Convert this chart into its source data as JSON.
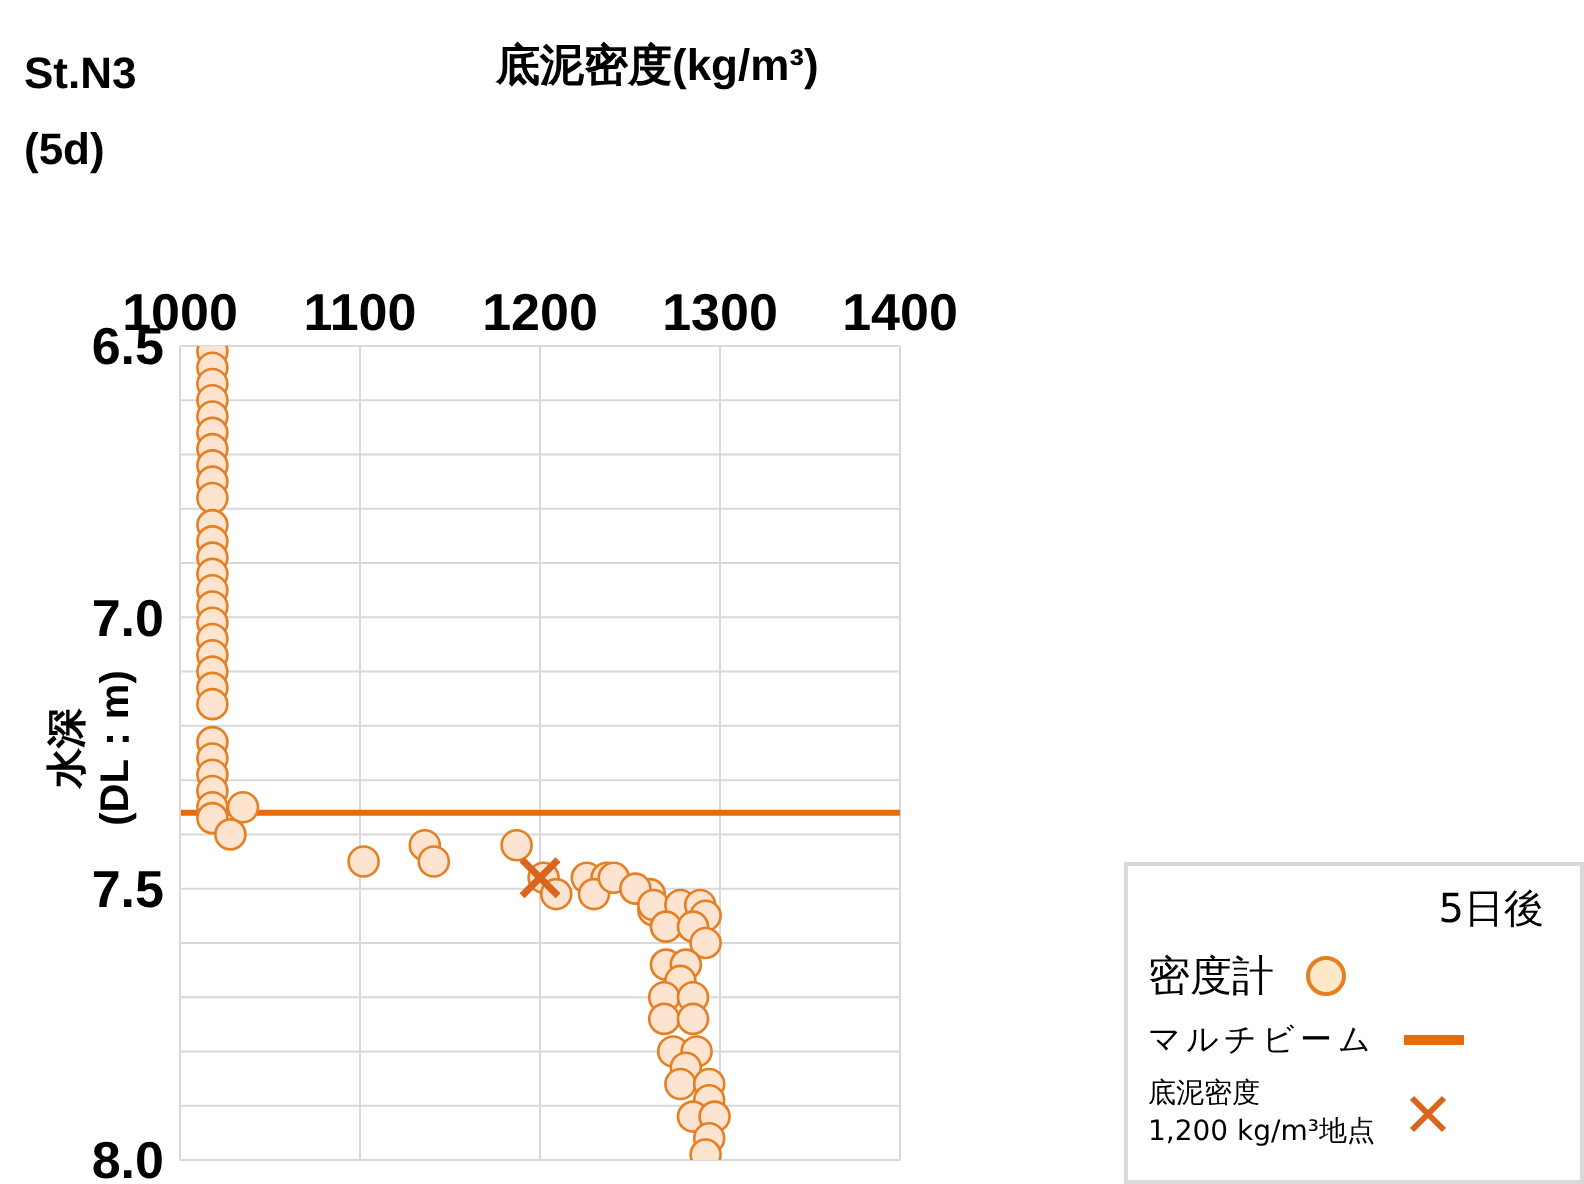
{
  "chart_data": {
    "type": "scatter",
    "title": "底泥密度(kg/m³)",
    "annotations": [
      "St.N3",
      "(5d)"
    ],
    "ylabel": "水深 (DL：m)",
    "legend_title": "5日後",
    "xlim": [
      1000,
      1400
    ],
    "xticks": [
      1000,
      1100,
      1200,
      1300,
      1400
    ],
    "ylim": [
      8.0,
      6.5
    ],
    "yticks": [
      {
        "value": 6.5,
        "label": "6.5"
      },
      {
        "value": 6.6,
        "label": null
      },
      {
        "value": 6.7,
        "label": null
      },
      {
        "value": 6.8,
        "label": null
      },
      {
        "value": 6.9,
        "label": null
      },
      {
        "value": 7.0,
        "label": "7.0"
      },
      {
        "value": 7.1,
        "label": null
      },
      {
        "value": 7.2,
        "label": null
      },
      {
        "value": 7.3,
        "label": null
      },
      {
        "value": 7.4,
        "label": null
      },
      {
        "value": 7.5,
        "label": "7.5"
      },
      {
        "value": 7.6,
        "label": null
      },
      {
        "value": 7.7,
        "label": null
      },
      {
        "value": 7.8,
        "label": null
      },
      {
        "value": 7.9,
        "label": null
      },
      {
        "value": 8.0,
        "label": "8.0"
      }
    ],
    "grid": true,
    "legend": "bottom right",
    "series": [
      {
        "name": "密度計",
        "color": "#e67e22",
        "marker": "circle",
        "x": [
          1018,
          1018,
          1018,
          1018,
          1018,
          1018,
          1018,
          1018,
          1018,
          1018,
          1018,
          1018,
          1018,
          1018,
          1018,
          1018,
          1018,
          1018,
          1018,
          1018,
          1018,
          1018,
          1018,
          1018,
          1018,
          1018,
          1018,
          1018,
          1035,
          1028,
          1102,
          1136,
          1141,
          1187,
          1202,
          1209,
          1226,
          1237,
          1230,
          1261,
          1263,
          1241,
          1253,
          1263,
          1278,
          1289,
          1292,
          1270,
          1285,
          1292,
          1270,
          1281,
          1278,
          1269,
          1269,
          1285,
          1285,
          1274,
          1287,
          1281,
          1278,
          1294,
          1294,
          1285,
          1297,
          1294,
          1292
        ],
        "values": [
          6.51,
          6.54,
          6.57,
          6.6,
          6.63,
          6.66,
          6.69,
          6.72,
          6.75,
          6.78,
          6.83,
          6.86,
          6.89,
          6.92,
          6.95,
          6.98,
          7.01,
          7.04,
          7.07,
          7.1,
          7.13,
          7.16,
          7.23,
          7.26,
          7.29,
          7.32,
          7.35,
          7.37,
          7.35,
          7.4,
          7.45,
          7.42,
          7.45,
          7.42,
          7.48,
          7.51,
          7.48,
          7.48,
          7.51,
          7.51,
          7.54,
          7.48,
          7.5,
          7.53,
          7.53,
          7.53,
          7.55,
          7.57,
          7.57,
          7.6,
          7.64,
          7.64,
          7.67,
          7.7,
          7.74,
          7.7,
          7.74,
          7.8,
          7.8,
          7.83,
          7.86,
          7.86,
          7.89,
          7.92,
          7.92,
          7.96,
          7.99
        ]
      },
      {
        "name": "底泥密度\n1,200 kg/m³地点",
        "color": "#d9661c",
        "marker": "cross",
        "x": [
          1200
        ],
        "values": [
          7.48
        ]
      }
    ],
    "ref_lines": [
      {
        "axis": "y",
        "value": 7.36,
        "label": "マルチビーム",
        "color": "#e46c0a"
      }
    ]
  }
}
